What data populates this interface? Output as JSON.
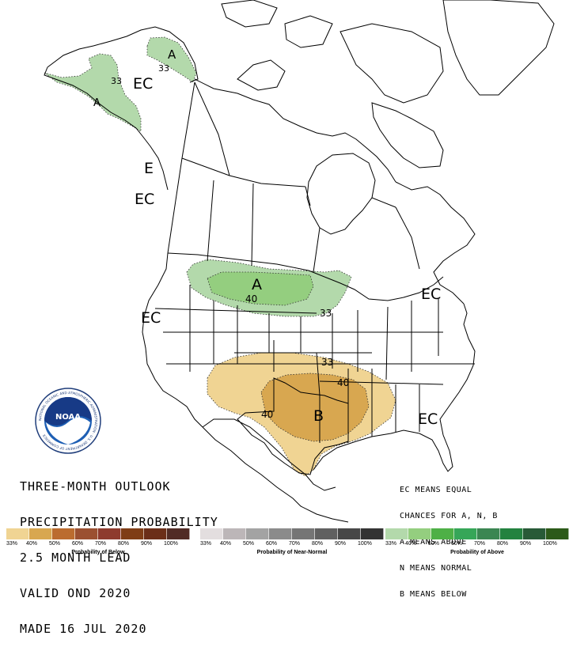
{
  "title_lines": [
    "THREE-MONTH OUTLOOK",
    "PRECIPITATION PROBABILITY",
    "2.5 MONTH LEAD",
    "VALID OND 2020",
    "MADE 16 JUL 2020"
  ],
  "legend_lines": [
    "EC MEANS EQUAL",
    "CHANCES FOR A, N, B",
    "A MEANS ABOVE",
    "N MEANS NORMAL",
    "B MEANS BELOW"
  ],
  "logo": {
    "text": "NOAA",
    "ring_text": "NATIONAL OCEANIC AND ATMOSPHERIC ADMINISTRATION · U.S. DEPARTMENT OF COMMERCE"
  },
  "map_labels": {
    "ec_alaska": "EC",
    "ec_nw_coast": "E",
    "ec_west_canada": "EC",
    "ec_west_us": "EC",
    "ec_northeast": "EC",
    "ec_southeast": "EC",
    "above_alaska_a": "A",
    "above_alaska_33": "33",
    "above_alaska_33b": "33",
    "above_alaska_sw_a": "A",
    "above_north": "A",
    "above_north_40": "40",
    "above_north_33": "33",
    "below_south": "B",
    "below_south_33": "33",
    "below_south_40a": "40",
    "below_south_40b": "40"
  },
  "scales": [
    {
      "caption": "Probability of Below",
      "colors": [
        "#f0d493",
        "#d8a750",
        "#bb6c2f",
        "#9b5031",
        "#8e3b2e",
        "#7f3d16",
        "#6b2e18",
        "#512b25"
      ],
      "ticks": [
        "33%",
        "40%",
        "50%",
        "60%",
        "70%",
        "80%",
        "90%",
        "100%"
      ]
    },
    {
      "caption": "Probability of Near-Normal",
      "colors": [
        "#e3dedf",
        "#bcb6b8",
        "#a3a3a3",
        "#8b8b8b",
        "#757575",
        "#606060",
        "#474747",
        "#333333"
      ],
      "ticks": [
        "33%",
        "40%",
        "50%",
        "60%",
        "70%",
        "80%",
        "90%",
        "100%"
      ]
    },
    {
      "caption": "Probability of Above",
      "colors": [
        "#b3d9ab",
        "#94ce7f",
        "#4eb046",
        "#36a658",
        "#3b8652",
        "#23823f",
        "#285a37",
        "#2c5a19"
      ],
      "ticks": [
        "33%",
        "40%",
        "50%",
        "60%",
        "70%",
        "80%",
        "90%",
        "100%"
      ]
    }
  ],
  "colors": {
    "above_33": "#b3d9ab",
    "above_40": "#94ce7f",
    "below_33": "#f0d493",
    "below_40": "#d8a750"
  }
}
